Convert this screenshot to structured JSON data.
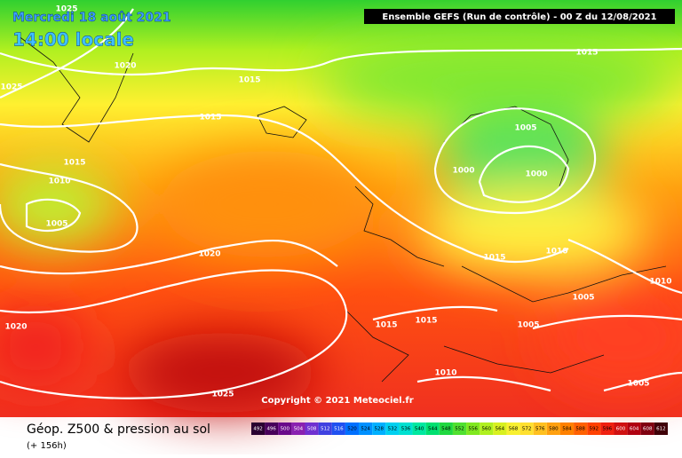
{
  "header": {
    "date": "Mercredi 18 août 2021",
    "time": "14:00 locale",
    "run": "Ensemble GEFS  (Run de contrôle)  -  00 Z du 12/08/2021"
  },
  "copyright": "Copyright © 2021 Meteociel.fr",
  "footer": {
    "title": "Géop. Z500 & pression au sol",
    "lead": "(+ 156h)"
  },
  "legend": {
    "labels": [
      492,
      496,
      500,
      504,
      508,
      512,
      516,
      520,
      524,
      528,
      532,
      536,
      540,
      544,
      548,
      552,
      556,
      560,
      564,
      568,
      572,
      576,
      580,
      584,
      588,
      592,
      596,
      600,
      604,
      608,
      612
    ],
    "colors": [
      "#2a0030",
      "#48005a",
      "#6a0a8a",
      "#8a20b0",
      "#7030d0",
      "#4040e0",
      "#2050f0",
      "#0070ff",
      "#0090ff",
      "#00b0ff",
      "#00d0f0",
      "#00e0d0",
      "#00e8a0",
      "#00e070",
      "#20d840",
      "#50e030",
      "#80e820",
      "#b0f020",
      "#d8f020",
      "#f8f030",
      "#ffe030",
      "#ffc020",
      "#ffa010",
      "#ff8000",
      "#ff6000",
      "#ff4000",
      "#f02010",
      "#d01010",
      "#b00010",
      "#800010",
      "#400008"
    ]
  },
  "isobars": [
    "1025",
    "1020",
    "1025",
    "1015",
    "1015",
    "1015",
    "1010",
    "1005",
    "1020",
    "1020",
    "1025",
    "1015",
    "1005",
    "1000",
    "1000",
    "1015",
    "1010",
    "1010",
    "1005",
    "1005",
    "1015",
    "1015",
    "1010",
    "1005"
  ]
}
